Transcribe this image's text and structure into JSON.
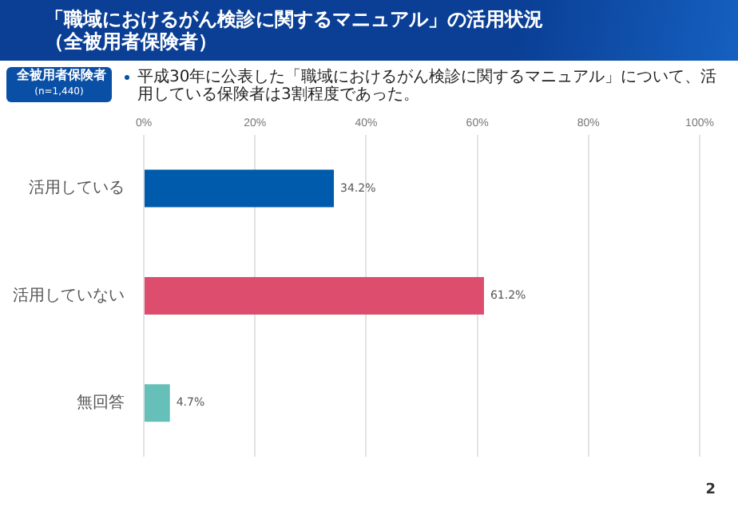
{
  "chart_data": {
    "type": "bar",
    "orientation": "horizontal",
    "title": "「職域におけるがん検診に関するマニュアル」の活用状況（全被用者保険者）",
    "subtitle": "平成30年に公表した「職域におけるがん検診に関するマニュアル」について、活用している保険者は3割程度であった。",
    "annotations": [
      "全被用者保険者",
      "(n=1,440)",
      "2"
    ],
    "categories": [
      "活用している",
      "活用していない",
      "無回答"
    ],
    "values": [
      34.2,
      61.2,
      4.7
    ],
    "colors": [
      "#005bac",
      "#dc4d6e",
      "#66bfb8"
    ],
    "value_labels": [
      "34.2%",
      "61.2%",
      "4.7%"
    ],
    "xlim": [
      0,
      100
    ],
    "xticks": [
      {
        "value": 0,
        "label": "0%"
      },
      {
        "value": 20,
        "label": "20%"
      },
      {
        "value": 40,
        "label": "40%"
      },
      {
        "value": 60,
        "label": "60%"
      },
      {
        "value": 80,
        "label": "80%"
      },
      {
        "value": 100,
        "label": "100%"
      }
    ],
    "grid": "x",
    "legend": false
  }
}
